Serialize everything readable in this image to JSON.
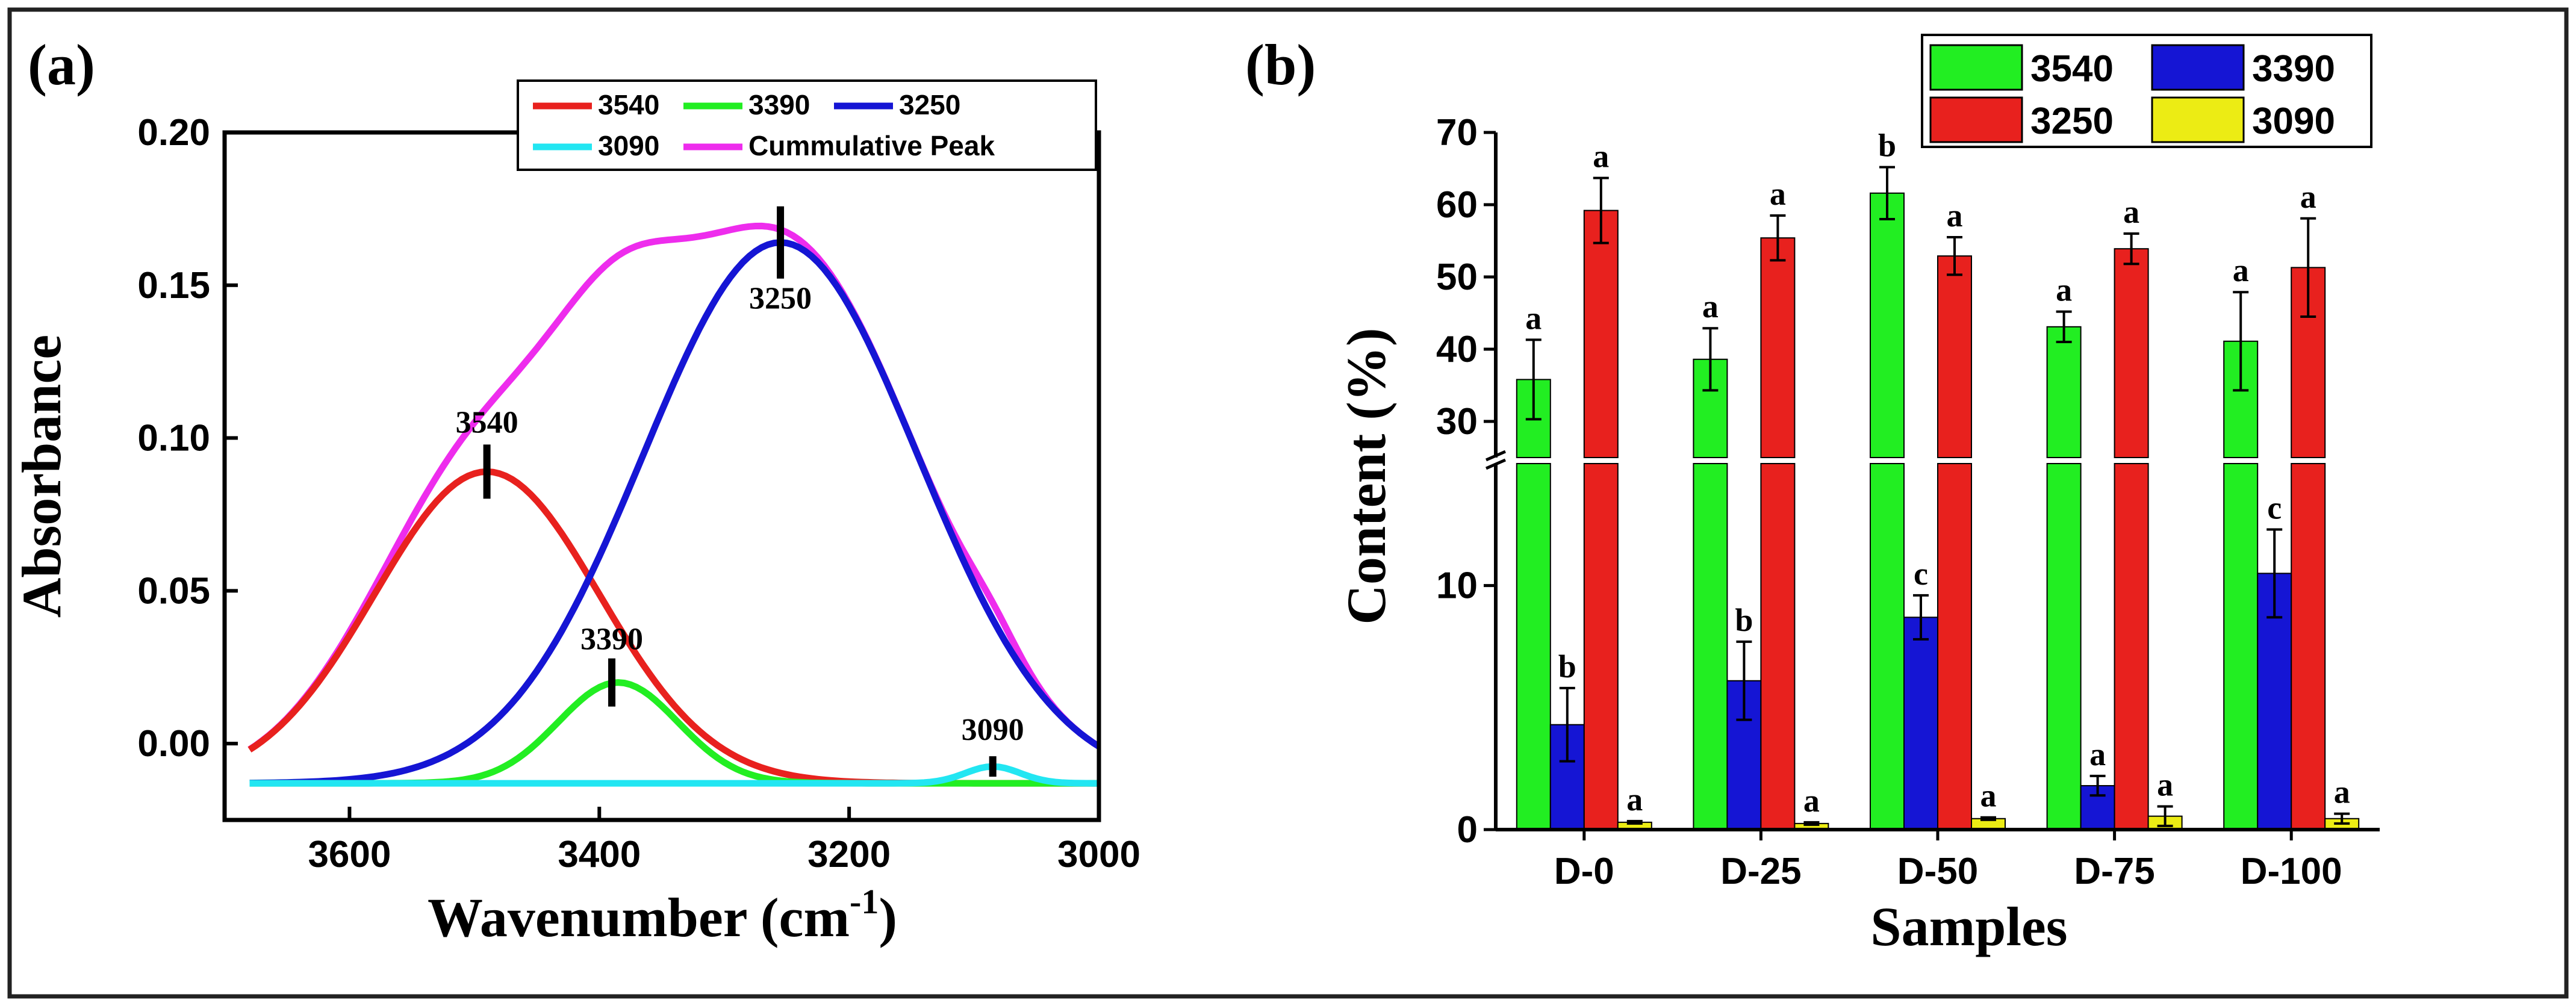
{
  "chart_data": [
    {
      "panel": "(a)",
      "type": "line",
      "xlabel": "Wavenumber (cm",
      "xlabel_sup": "-1",
      "xlabel_close": ")",
      "ylabel": "Absorbance",
      "xlim": [
        3700,
        3000
      ],
      "ylim": [
        -0.025,
        0.2
      ],
      "x_ticks": [
        3600,
        3400,
        3200,
        3000
      ],
      "y_ticks": [
        0.0,
        0.05,
        0.1,
        0.15,
        0.2
      ],
      "y_tick_labels": [
        "0.00",
        "0.05",
        "0.10",
        "0.15",
        "0.20"
      ],
      "baseline": -0.013,
      "legend_placement": "top-right",
      "series": [
        {
          "name": "3540",
          "color": "#e8211e",
          "center": 3490,
          "peak": 0.089,
          "sigma": 90
        },
        {
          "name": "3390",
          "color": "#22ee22",
          "center": 3385,
          "peak": 0.02,
          "sigma": 48
        },
        {
          "name": "3250",
          "color": "#1515d4",
          "center": 3255,
          "peak": 0.164,
          "sigma": 110
        },
        {
          "name": "3090",
          "color": "#22e6f2",
          "center": 3085,
          "peak": -0.0075,
          "sigma": 22
        },
        {
          "name": "Cummulative Peak",
          "color": "#ee2ced",
          "cumulative": true
        }
      ],
      "annotations": [
        {
          "text": "3540",
          "x": 3490,
          "y": 0.089
        },
        {
          "text": "3390",
          "x": 3390,
          "y": 0.02
        },
        {
          "text": "3250",
          "x": 3255,
          "y": 0.164
        },
        {
          "text": "3090",
          "x": 3085,
          "y": -0.0075
        }
      ]
    },
    {
      "panel": "(b)",
      "type": "bar",
      "xlabel": "Samples",
      "ylabel": "Content (%)",
      "categories": [
        "D-0",
        "D-25",
        "D-50",
        "D-75",
        "D-100"
      ],
      "y_axis_break": true,
      "ylim_lower": [
        0,
        15
      ],
      "ylim_upper": [
        25,
        70
      ],
      "y_ticks_lower": [
        0,
        10
      ],
      "y_ticks_upper": [
        30,
        40,
        50,
        60,
        70
      ],
      "legend_placement": "top-right",
      "series": [
        {
          "name": "3540",
          "color": "#22ee22",
          "values": [
            35.8,
            38.6,
            61.6,
            43.1,
            41.1
          ],
          "errors": [
            5.5,
            4.3,
            3.6,
            2.1,
            6.8
          ],
          "labels": [
            "a",
            "a",
            "b",
            "a",
            "a"
          ]
        },
        {
          "name": "3390",
          "color": "#1515d4",
          "values": [
            4.3,
            6.1,
            8.7,
            1.8,
            10.5
          ],
          "errors": [
            1.5,
            1.6,
            0.9,
            0.4,
            1.8
          ],
          "labels": [
            "b",
            "b",
            "c",
            "a",
            "c"
          ]
        },
        {
          "name": "3250",
          "color": "#e8211e",
          "values": [
            59.2,
            55.4,
            52.9,
            53.9,
            51.3
          ],
          "errors": [
            4.5,
            3.1,
            2.6,
            2.1,
            6.8
          ],
          "labels": [
            "a",
            "a",
            "a",
            "a",
            "a"
          ]
        },
        {
          "name": "3090",
          "color": "#ecec14",
          "values": [
            0.3,
            0.25,
            0.45,
            0.55,
            0.45
          ],
          "errors": [
            0.05,
            0.05,
            0.05,
            0.4,
            0.2
          ],
          "labels": [
            "a",
            "a",
            "a",
            "a",
            "a"
          ]
        }
      ]
    }
  ]
}
